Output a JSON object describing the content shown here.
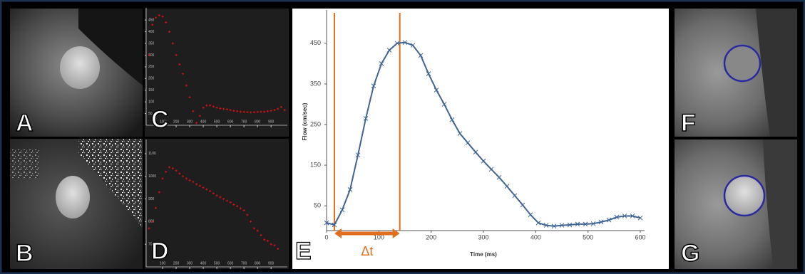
{
  "images": [
    {
      "label": "A"
    },
    {
      "label": "B"
    },
    {
      "label": "F"
    },
    {
      "label": "G"
    }
  ],
  "chart_data": [
    {
      "type": "scatter",
      "label": "C",
      "color": "#e01010",
      "x": [
        0,
        25,
        50,
        75,
        100,
        125,
        150,
        175,
        200,
        225,
        250,
        275,
        300,
        325,
        350,
        375,
        400,
        425,
        450,
        475,
        500,
        525,
        550,
        575,
        600,
        625,
        650,
        675,
        700,
        725,
        750,
        775,
        800,
        825,
        850,
        875,
        900,
        925,
        950,
        975,
        1000
      ],
      "values": [
        300,
        430,
        460,
        470,
        465,
        440,
        400,
        350,
        300,
        260,
        220,
        170,
        120,
        60,
        10,
        40,
        75,
        85,
        85,
        80,
        75,
        72,
        70,
        68,
        65,
        62,
        60,
        58,
        57,
        56,
        55,
        56,
        57,
        58,
        58,
        60,
        62,
        65,
        70,
        78,
        65
      ],
      "xlim": [
        0,
        1020
      ],
      "ylim": [
        0,
        490
      ],
      "xticks": [
        100,
        200,
        300,
        400,
        500,
        600,
        700,
        800,
        900
      ],
      "yticks": [
        50,
        100,
        150,
        200,
        250,
        300,
        350,
        400,
        450
      ]
    },
    {
      "type": "scatter",
      "label": "D",
      "color": "#e01010",
      "x": [
        0,
        25,
        50,
        75,
        100,
        125,
        150,
        175,
        200,
        225,
        250,
        275,
        300,
        325,
        350,
        375,
        400,
        425,
        450,
        475,
        500,
        525,
        550,
        575,
        600,
        625,
        650,
        675,
        700,
        725,
        750,
        775,
        800,
        825,
        850,
        875,
        900,
        925,
        950
      ],
      "values": [
        770,
        800,
        860,
        930,
        990,
        1020,
        1040,
        1035,
        1025,
        1012,
        1000,
        990,
        982,
        975,
        965,
        958,
        950,
        942,
        935,
        925,
        915,
        908,
        900,
        892,
        885,
        875,
        868,
        858,
        850,
        830,
        800,
        770,
        760,
        740,
        720,
        715,
        700,
        695,
        680
      ],
      "xlim": [
        0,
        1020
      ],
      "ylim": [
        600,
        1150
      ],
      "xticks": [
        100,
        200,
        300,
        400,
        500,
        600,
        700,
        800,
        900
      ],
      "yticks": [
        700,
        800,
        900,
        1000,
        1100
      ]
    },
    {
      "type": "line",
      "label": "E",
      "color": "#3f6595",
      "xlabel": "Time (ms)",
      "ylabel": "Flow (cm/sec)",
      "x": [
        0,
        15,
        30,
        45,
        60,
        75,
        90,
        105,
        120,
        135,
        150,
        165,
        180,
        195,
        210,
        225,
        240,
        255,
        270,
        285,
        300,
        315,
        330,
        345,
        360,
        375,
        390,
        405,
        420,
        435,
        450,
        465,
        480,
        495,
        510,
        525,
        540,
        555,
        570,
        585,
        600
      ],
      "values": [
        8,
        3,
        40,
        90,
        175,
        265,
        345,
        400,
        433,
        450,
        452,
        445,
        420,
        375,
        335,
        300,
        262,
        228,
        205,
        182,
        160,
        140,
        120,
        98,
        75,
        52,
        28,
        8,
        2,
        0,
        2,
        3,
        5,
        5,
        6,
        10,
        15,
        22,
        25,
        25,
        20
      ],
      "xlim": [
        0,
        600
      ],
      "ylim": [
        -11,
        525
      ],
      "xticks": [
        0,
        100,
        200,
        300,
        400,
        500,
        600
      ],
      "yticks": [
        50,
        150,
        250,
        350,
        450
      ],
      "vlines": [
        15,
        140
      ],
      "vline_color": "#e07020",
      "annotation": "Δt"
    }
  ]
}
